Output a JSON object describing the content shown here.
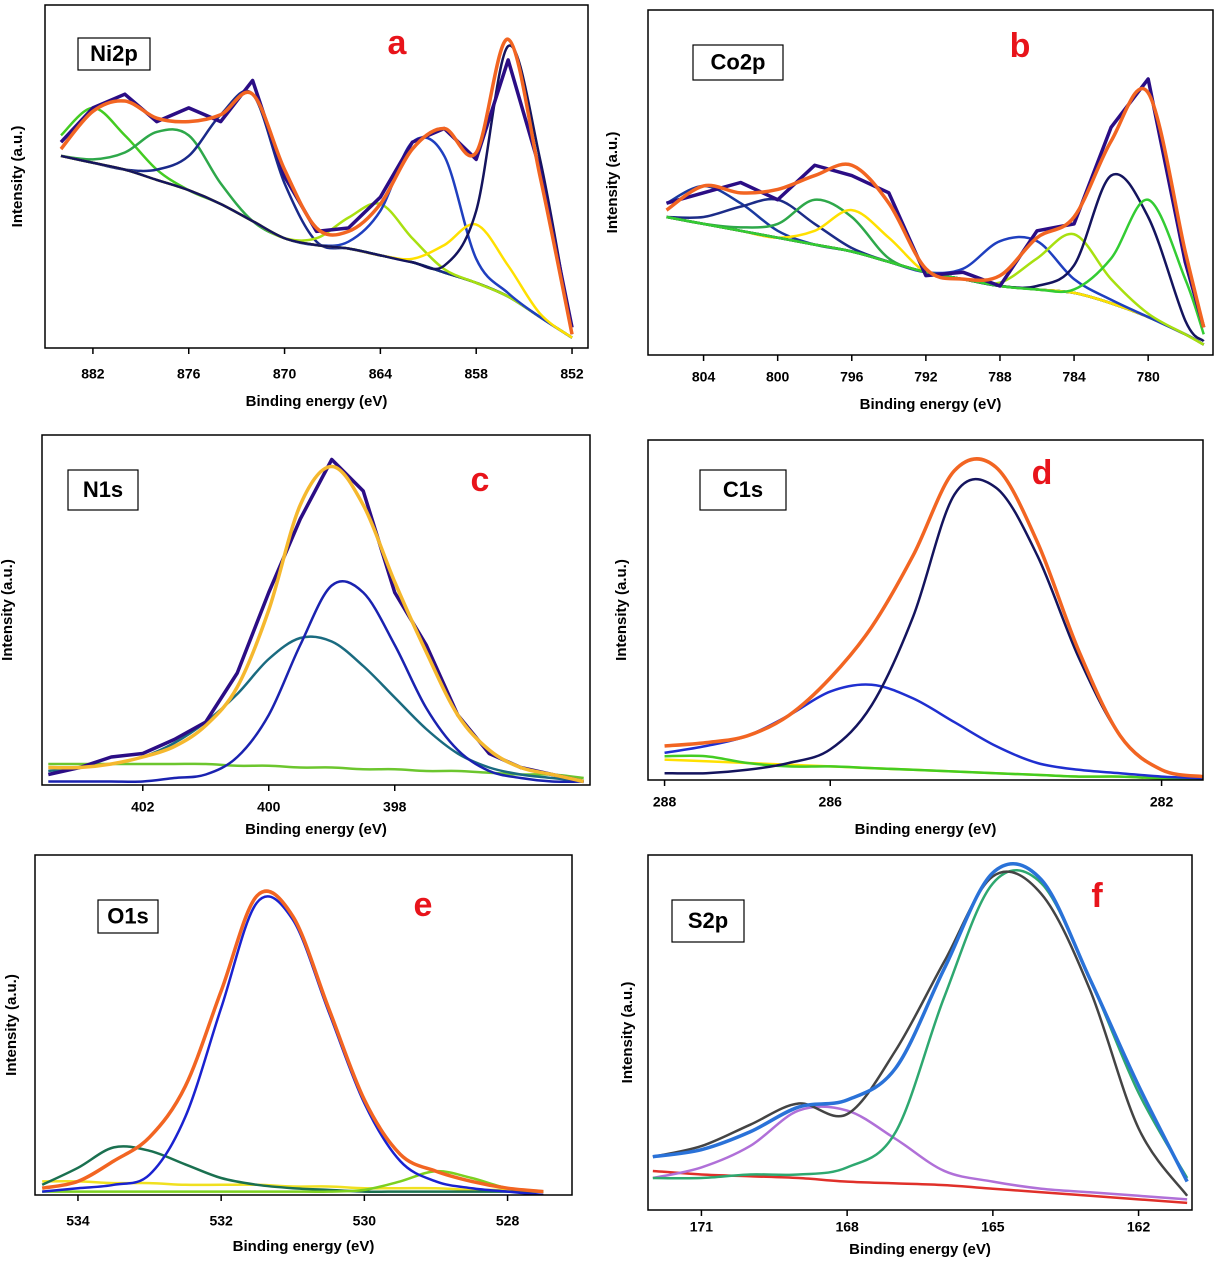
{
  "chart_data": [
    {
      "type": "line",
      "title": "Ni2p",
      "panel_label": "a",
      "x_label": "Binding energy (eV)",
      "y_label": "Intensity (a.u.)",
      "xlim": [
        885,
        851
      ],
      "xticks": [
        882,
        876,
        870,
        864,
        858,
        852
      ],
      "ylim": [
        0,
        100
      ],
      "x": [
        884,
        882,
        880,
        878,
        876,
        874,
        872,
        870,
        868,
        866,
        864,
        862,
        860,
        858,
        856,
        854,
        852
      ],
      "series": [
        {
          "color": "#e8a33c",
          "values": [
            56,
            54,
            52,
            49,
            46,
            42,
            37,
            32,
            30,
            29,
            27,
            25,
            22,
            19,
            15,
            9,
            3
          ]
        },
        {
          "color": "#44cc22",
          "values": [
            62,
            70,
            62,
            52,
            46,
            42,
            37,
            32,
            30,
            29,
            27,
            25,
            22,
            19,
            15,
            9,
            3
          ]
        },
        {
          "color": "#2ea84a",
          "values": [
            56,
            55,
            57,
            63,
            62,
            48,
            37,
            32,
            30,
            29,
            27,
            25,
            22,
            19,
            15,
            9,
            3
          ]
        },
        {
          "color": "#1a2a8a",
          "values": [
            56,
            54,
            52,
            52,
            56,
            68,
            74,
            48,
            31,
            29,
            27,
            25,
            22,
            19,
            15,
            9,
            3
          ]
        },
        {
          "color": "#a8e010",
          "values": [
            56,
            54,
            52,
            49,
            46,
            42,
            37,
            32,
            32,
            38,
            42,
            32,
            23,
            19,
            15,
            9,
            3
          ]
        },
        {
          "color": "#1f3fbf",
          "values": [
            56,
            54,
            52,
            49,
            46,
            42,
            37,
            32,
            30,
            31,
            40,
            60,
            56,
            26,
            16,
            9,
            3
          ]
        },
        {
          "color": "#ffe000",
          "values": [
            56,
            54,
            52,
            49,
            46,
            42,
            37,
            32,
            30,
            29,
            27,
            26,
            30,
            36,
            24,
            10,
            3
          ]
        },
        {
          "color": "#14145e",
          "values": [
            56,
            54,
            52,
            49,
            46,
            42,
            37,
            32,
            30,
            29,
            27,
            25,
            24,
            40,
            88,
            55,
            4
          ]
        },
        {
          "color": "#2b0d85",
          "values": [
            60,
            70,
            74,
            66,
            70,
            66,
            78,
            50,
            34,
            35,
            44,
            60,
            64,
            55,
            84,
            52,
            6
          ]
        },
        {
          "color": "#f26522",
          "values": [
            58,
            69,
            72,
            67,
            66,
            68,
            74,
            52,
            35,
            34,
            42,
            58,
            64,
            57,
            90,
            50,
            4
          ]
        }
      ]
    },
    {
      "type": "line",
      "title": "Co2p",
      "panel_label": "b",
      "x_label": "Binding energy (eV)",
      "y_label": "Intensity (a.u.)",
      "xlim": [
        807,
        776.5
      ],
      "xticks": [
        804,
        800,
        796,
        792,
        788,
        784,
        780
      ],
      "ylim": [
        0,
        100
      ],
      "x": [
        806,
        804,
        802,
        800,
        798,
        796,
        794,
        792,
        790,
        788,
        786,
        784,
        782,
        780,
        778,
        777
      ],
      "series": [
        {
          "color": "#e8a33c",
          "values": [
            40,
            38,
            36,
            34,
            32,
            30,
            27,
            24,
            22,
            20,
            19,
            18,
            15,
            11,
            6,
            3
          ]
        },
        {
          "color": "#1a3aa0",
          "values": [
            44,
            49,
            44,
            36,
            32,
            30,
            27,
            24,
            22,
            20,
            19,
            18,
            15,
            11,
            6,
            3
          ]
        },
        {
          "color": "#1c2c88",
          "values": [
            40,
            40,
            43,
            45,
            38,
            31,
            27,
            24,
            22,
            20,
            19,
            18,
            15,
            11,
            6,
            3
          ]
        },
        {
          "color": "#2ea84a",
          "values": [
            40,
            38,
            37,
            38,
            45,
            40,
            28,
            24,
            22,
            20,
            19,
            18,
            15,
            11,
            6,
            3
          ]
        },
        {
          "color": "#ffe000",
          "values": [
            40,
            38,
            36,
            34,
            36,
            42,
            34,
            24,
            22,
            20,
            19,
            18,
            15,
            11,
            6,
            3
          ]
        },
        {
          "color": "#1f3fbf",
          "values": [
            40,
            38,
            36,
            34,
            32,
            30,
            27,
            24,
            25,
            33,
            33,
            22,
            16,
            11,
            6,
            3
          ]
        },
        {
          "color": "#a8e010",
          "values": [
            40,
            38,
            36,
            34,
            32,
            30,
            27,
            24,
            22,
            21,
            28,
            35,
            22,
            12,
            6,
            3
          ]
        },
        {
          "color": "#14145e",
          "values": [
            40,
            38,
            36,
            34,
            32,
            30,
            27,
            24,
            22,
            20,
            20,
            26,
            52,
            40,
            10,
            4
          ]
        },
        {
          "color": "#33cc33",
          "values": [
            40,
            38,
            36,
            34,
            32,
            30,
            27,
            24,
            22,
            20,
            19,
            19,
            28,
            45,
            22,
            6
          ]
        },
        {
          "color": "#2b0d85",
          "values": [
            44,
            47,
            50,
            45,
            55,
            52,
            47,
            23,
            24,
            20,
            36,
            38,
            66,
            80,
            27,
            8
          ]
        },
        {
          "color": "#f26522",
          "values": [
            42,
            49,
            47,
            48,
            52,
            55,
            44,
            25,
            22,
            23,
            34,
            40,
            62,
            76,
            30,
            8
          ]
        }
      ]
    },
    {
      "type": "line",
      "title": "N1s",
      "panel_label": "c",
      "x_label": "Binding energy (eV)",
      "y_label": "Intensity (a.u.)",
      "xlim": [
        403.6,
        394.9
      ],
      "xticks": [
        402,
        400,
        398
      ],
      "ylim": [
        0,
        100
      ],
      "x": [
        403.5,
        403,
        402.5,
        402,
        401.5,
        401,
        400.5,
        400,
        399.5,
        399,
        398.5,
        398,
        397.5,
        397,
        396.5,
        396,
        395.5,
        395
      ],
      "series": [
        {
          "color": "#6cc62e",
          "values": [
            6,
            6,
            6,
            6,
            6,
            6,
            5.5,
            5.5,
            5,
            5,
            4.5,
            4.5,
            4,
            4,
            3.5,
            3,
            3,
            2
          ]
        },
        {
          "color": "#1a6b80",
          "values": [
            4,
            5,
            6,
            8,
            12,
            18,
            26,
            36,
            42,
            41,
            34,
            25,
            16,
            9,
            5,
            3,
            2,
            1
          ]
        },
        {
          "color": "#1a22b0",
          "values": [
            1,
            1,
            1,
            1,
            2,
            3,
            8,
            20,
            40,
            57,
            55,
            40,
            22,
            10,
            4,
            2,
            1,
            1
          ]
        },
        {
          "color": "#2b0d85",
          "values": [
            3,
            5,
            8,
            9,
            13,
            18,
            32,
            55,
            76,
            93,
            84,
            55,
            40,
            20,
            9,
            5,
            3,
            1
          ]
        },
        {
          "color": "#f5b82e",
          "values": [
            5,
            5,
            6,
            8,
            11,
            17,
            28,
            50,
            80,
            91,
            80,
            58,
            38,
            20,
            10,
            5,
            3,
            1
          ]
        }
      ]
    },
    {
      "type": "line",
      "title": "C1s",
      "panel_label": "d",
      "x_label": "Binding energy (eV)",
      "y_label": "Intensity (a.u.)",
      "xlim": [
        288.2,
        281.5
      ],
      "xticks": [
        288,
        286,
        282
      ],
      "ylim": [
        0,
        100
      ],
      "x": [
        288,
        287.5,
        287,
        286.5,
        286,
        285.5,
        285,
        284.5,
        284,
        283.5,
        283,
        282.5,
        282,
        281.5
      ],
      "series": [
        {
          "color": "#ffe000",
          "values": [
            6,
            5.5,
            5,
            4.5,
            4,
            3.5,
            3,
            2.5,
            2,
            1.5,
            1,
            1,
            0.5,
            0.5
          ]
        },
        {
          "color": "#44cc22",
          "values": [
            7,
            7,
            5,
            4,
            4,
            3.5,
            3,
            2.5,
            2,
            1.5,
            1,
            1,
            0.5,
            0.5
          ]
        },
        {
          "color": "#1f2fd0",
          "values": [
            8,
            10,
            13,
            19,
            26,
            28,
            24,
            17,
            10,
            5,
            3,
            2,
            1,
            0.5
          ]
        },
        {
          "color": "#14145e",
          "values": [
            2,
            2,
            3,
            5,
            9,
            22,
            48,
            84,
            86,
            66,
            36,
            13,
            3,
            1
          ]
        },
        {
          "color": "#f26522",
          "values": [
            10,
            11,
            13,
            19,
            30,
            45,
            66,
            91,
            92,
            70,
            38,
            13,
            3,
            1
          ]
        }
      ]
    },
    {
      "type": "line",
      "title": "O1s",
      "panel_label": "e",
      "x_label": "Binding energy (eV)",
      "y_label": "Intensity (a.u.)",
      "xlim": [
        534.6,
        527.1
      ],
      "xticks": [
        534,
        532,
        530,
        528
      ],
      "ylim": [
        0,
        100
      ],
      "x": [
        534.5,
        534,
        533.5,
        533,
        532.5,
        532,
        531.5,
        531,
        530.5,
        530,
        529.5,
        529,
        528.5,
        528,
        527.5
      ],
      "series": [
        {
          "color": "#f0e020",
          "values": [
            4,
            4,
            3.5,
            3.5,
            3,
            3,
            3,
            2.5,
            2.5,
            2,
            2,
            2,
            1.5,
            1.5,
            1
          ]
        },
        {
          "color": "#1a7050",
          "values": [
            3,
            8,
            14,
            13,
            9,
            5,
            3,
            2,
            1.5,
            1,
            1,
            1,
            1,
            1,
            1
          ]
        },
        {
          "color": "#7cd020",
          "values": [
            1,
            1,
            1,
            1,
            1,
            1,
            1,
            1,
            1,
            1.5,
            4,
            7,
            5,
            2,
            1
          ]
        },
        {
          "color": "#1a22d0",
          "values": [
            1,
            2,
            3,
            6,
            23,
            55,
            86,
            81,
            54,
            27,
            10,
            4,
            2,
            1,
            0
          ]
        },
        {
          "color": "#f26522",
          "values": [
            2,
            4,
            10,
            17,
            32,
            60,
            88,
            82,
            55,
            28,
            12,
            7,
            4,
            2,
            1
          ]
        }
      ]
    },
    {
      "type": "line",
      "title": "S2p",
      "panel_label": "f",
      "x_label": "Binding energy (eV)",
      "y_label": "Intensity (a.u.)",
      "xlim": [
        172.1,
        160.9
      ],
      "xticks": [
        171,
        168,
        165,
        162
      ],
      "ylim": [
        0,
        100
      ],
      "x": [
        172,
        171,
        170,
        169,
        168,
        167,
        166,
        165,
        164,
        163,
        162,
        161
      ],
      "series": [
        {
          "color": "#e0302a",
          "values": [
            11,
            10,
            9.5,
            9,
            8,
            7.5,
            7,
            6,
            5,
            4,
            3,
            2
          ]
        },
        {
          "color": "#b070d8",
          "values": [
            9,
            12,
            18,
            28,
            28,
            20,
            11,
            8,
            6,
            5,
            4,
            3
          ]
        },
        {
          "color": "#2ea870",
          "values": [
            9,
            9,
            10,
            10,
            12,
            22,
            60,
            92,
            92,
            65,
            33,
            9
          ]
        },
        {
          "color": "#444444",
          "values": [
            15,
            18,
            24,
            30,
            27,
            45,
            70,
            94,
            89,
            62,
            23,
            4
          ]
        },
        {
          "color": "#2a72d8",
          "values": [
            15,
            17,
            22,
            29,
            31,
            40,
            68,
            95,
            93,
            65,
            35,
            8
          ]
        }
      ]
    }
  ]
}
